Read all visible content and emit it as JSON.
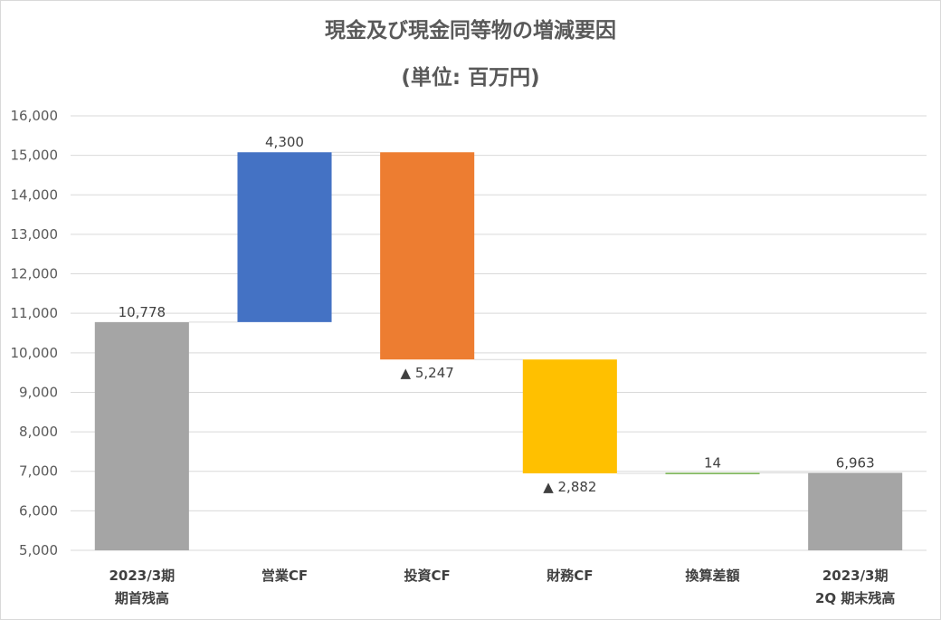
{
  "chart_data": {
    "type": "waterfall",
    "title": "現金及び現金同等物の増減要因",
    "subtitle": "(単位: 百万円)",
    "ylim": [
      5000,
      16000
    ],
    "ytick_step": 1000,
    "yticks": [
      "5,000",
      "6,000",
      "7,000",
      "8,000",
      "9,000",
      "10,000",
      "11,000",
      "12,000",
      "13,000",
      "14,000",
      "15,000",
      "16,000"
    ],
    "grid": true,
    "categories": [
      [
        "2023/3期",
        "期首残高"
      ],
      [
        "営業CF"
      ],
      [
        "投資CF"
      ],
      [
        "財務CF"
      ],
      [
        "換算差額"
      ],
      [
        "2023/3期",
        "2Q 期末残高"
      ]
    ],
    "bars": [
      {
        "start": 0,
        "end": 10778,
        "value": 10778,
        "label": "10,778",
        "color": "#a5a5a5",
        "kind": "total"
      },
      {
        "start": 10778,
        "end": 15078,
        "value": 4300,
        "label": "4,300",
        "color": "#4472c4",
        "kind": "increase"
      },
      {
        "start": 15078,
        "end": 9831,
        "value": -5247,
        "label": "▲ 5,247",
        "color": "#ed7d31",
        "kind": "decrease"
      },
      {
        "start": 9831,
        "end": 6949,
        "value": -2882,
        "label": "▲ 2,882",
        "color": "#ffc000",
        "kind": "decrease"
      },
      {
        "start": 6949,
        "end": 6963,
        "value": 14,
        "label": "14",
        "color": "#70ad47",
        "kind": "increase"
      },
      {
        "start": 0,
        "end": 6963,
        "value": 6963,
        "label": "6,963",
        "color": "#a5a5a5",
        "kind": "total"
      }
    ]
  }
}
